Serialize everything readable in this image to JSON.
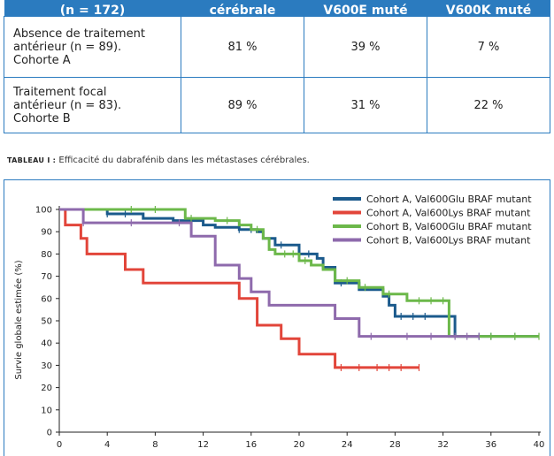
{
  "table": {
    "headers": [
      "(n = 172)",
      "cérébrale",
      "V600E muté",
      "V600K muté"
    ],
    "rows": [
      {
        "label_lines": [
          "Absence de traitement",
          "antérieur (n = 89).",
          "Cohorte A"
        ],
        "values": [
          "81 %",
          "39 %",
          "7 %"
        ]
      },
      {
        "label_lines": [
          "Traitement focal",
          "antérieur (n = 83).",
          "Cohorte B"
        ],
        "values": [
          "89 %",
          "31 %",
          "22 %"
        ]
      }
    ]
  },
  "caption": {
    "label": "TABLEAU I :",
    "text": "Efficacité du dabrafénib dans les métastases cérébrales."
  },
  "chart_data": {
    "type": "line",
    "step": true,
    "title": "",
    "xlabel": "",
    "ylabel": "Survie globale estimée (%)",
    "xlim": [
      0,
      40
    ],
    "ylim": [
      0,
      100
    ],
    "xticks": [
      0,
      4,
      8,
      12,
      16,
      20,
      24,
      28,
      32,
      36,
      40
    ],
    "yticks": [
      0,
      10,
      20,
      30,
      40,
      50,
      60,
      70,
      80,
      90,
      100
    ],
    "grid": false,
    "legend_position": "top-right",
    "series": [
      {
        "name": "Cohort A, Val600Glu BRAF mutant",
        "color": "#1b5a8c",
        "x": [
          0,
          4,
          7,
          9.5,
          12,
          13,
          15,
          16.5,
          17,
          18,
          20,
          21.5,
          22,
          23,
          25,
          27,
          27.5,
          28,
          33,
          40
        ],
        "y": [
          100,
          98,
          96,
          95,
          93,
          92,
          91,
          90,
          87,
          84,
          80,
          78,
          74,
          67,
          64,
          61,
          57,
          52,
          43,
          43
        ],
        "censor_x": [
          4,
          5.5,
          11,
          15,
          16,
          18.5,
          20.8,
          23.5,
          28.5,
          29.5,
          30.5,
          35,
          36,
          38
        ]
      },
      {
        "name": "Cohort A, Val600Lys BRAF mutant",
        "color": "#e2453a",
        "x": [
          0,
          0.5,
          1.8,
          2.3,
          5.5,
          7,
          15,
          16.5,
          18.5,
          20,
          23,
          30
        ],
        "y": [
          100,
          93,
          87,
          80,
          73,
          67,
          60,
          48,
          42,
          35,
          29,
          29
        ],
        "censor_x": [
          23.5,
          25,
          26.5,
          27.5,
          28.5,
          30
        ]
      },
      {
        "name": "Cohort B, Val600Glu BRAF mutant",
        "color": "#6cb84a",
        "x": [
          0,
          10.5,
          13,
          15,
          16,
          17,
          17.5,
          18,
          20,
          21,
          22,
          23,
          25,
          27,
          29,
          32.5,
          40
        ],
        "y": [
          100,
          96,
          95,
          93,
          91,
          87,
          82,
          80,
          77,
          75,
          73,
          68,
          65,
          62,
          59,
          43,
          43
        ],
        "censor_x": [
          6,
          8,
          11,
          14,
          16.5,
          18.8,
          19.5,
          20.5,
          24,
          25.5,
          27.5,
          30,
          31,
          32,
          36,
          38,
          40
        ]
      },
      {
        "name": "Cohort B, Val600Lys BRAF mutant",
        "color": "#8e6aac",
        "x": [
          0,
          2,
          11,
          13,
          15,
          16,
          17.5,
          23,
          25,
          35
        ],
        "y": [
          100,
          94,
          88,
          75,
          69,
          63,
          57,
          51,
          43,
          43
        ],
        "censor_x": [
          2,
          6,
          10,
          26,
          29,
          31,
          33,
          34,
          35
        ]
      }
    ]
  }
}
